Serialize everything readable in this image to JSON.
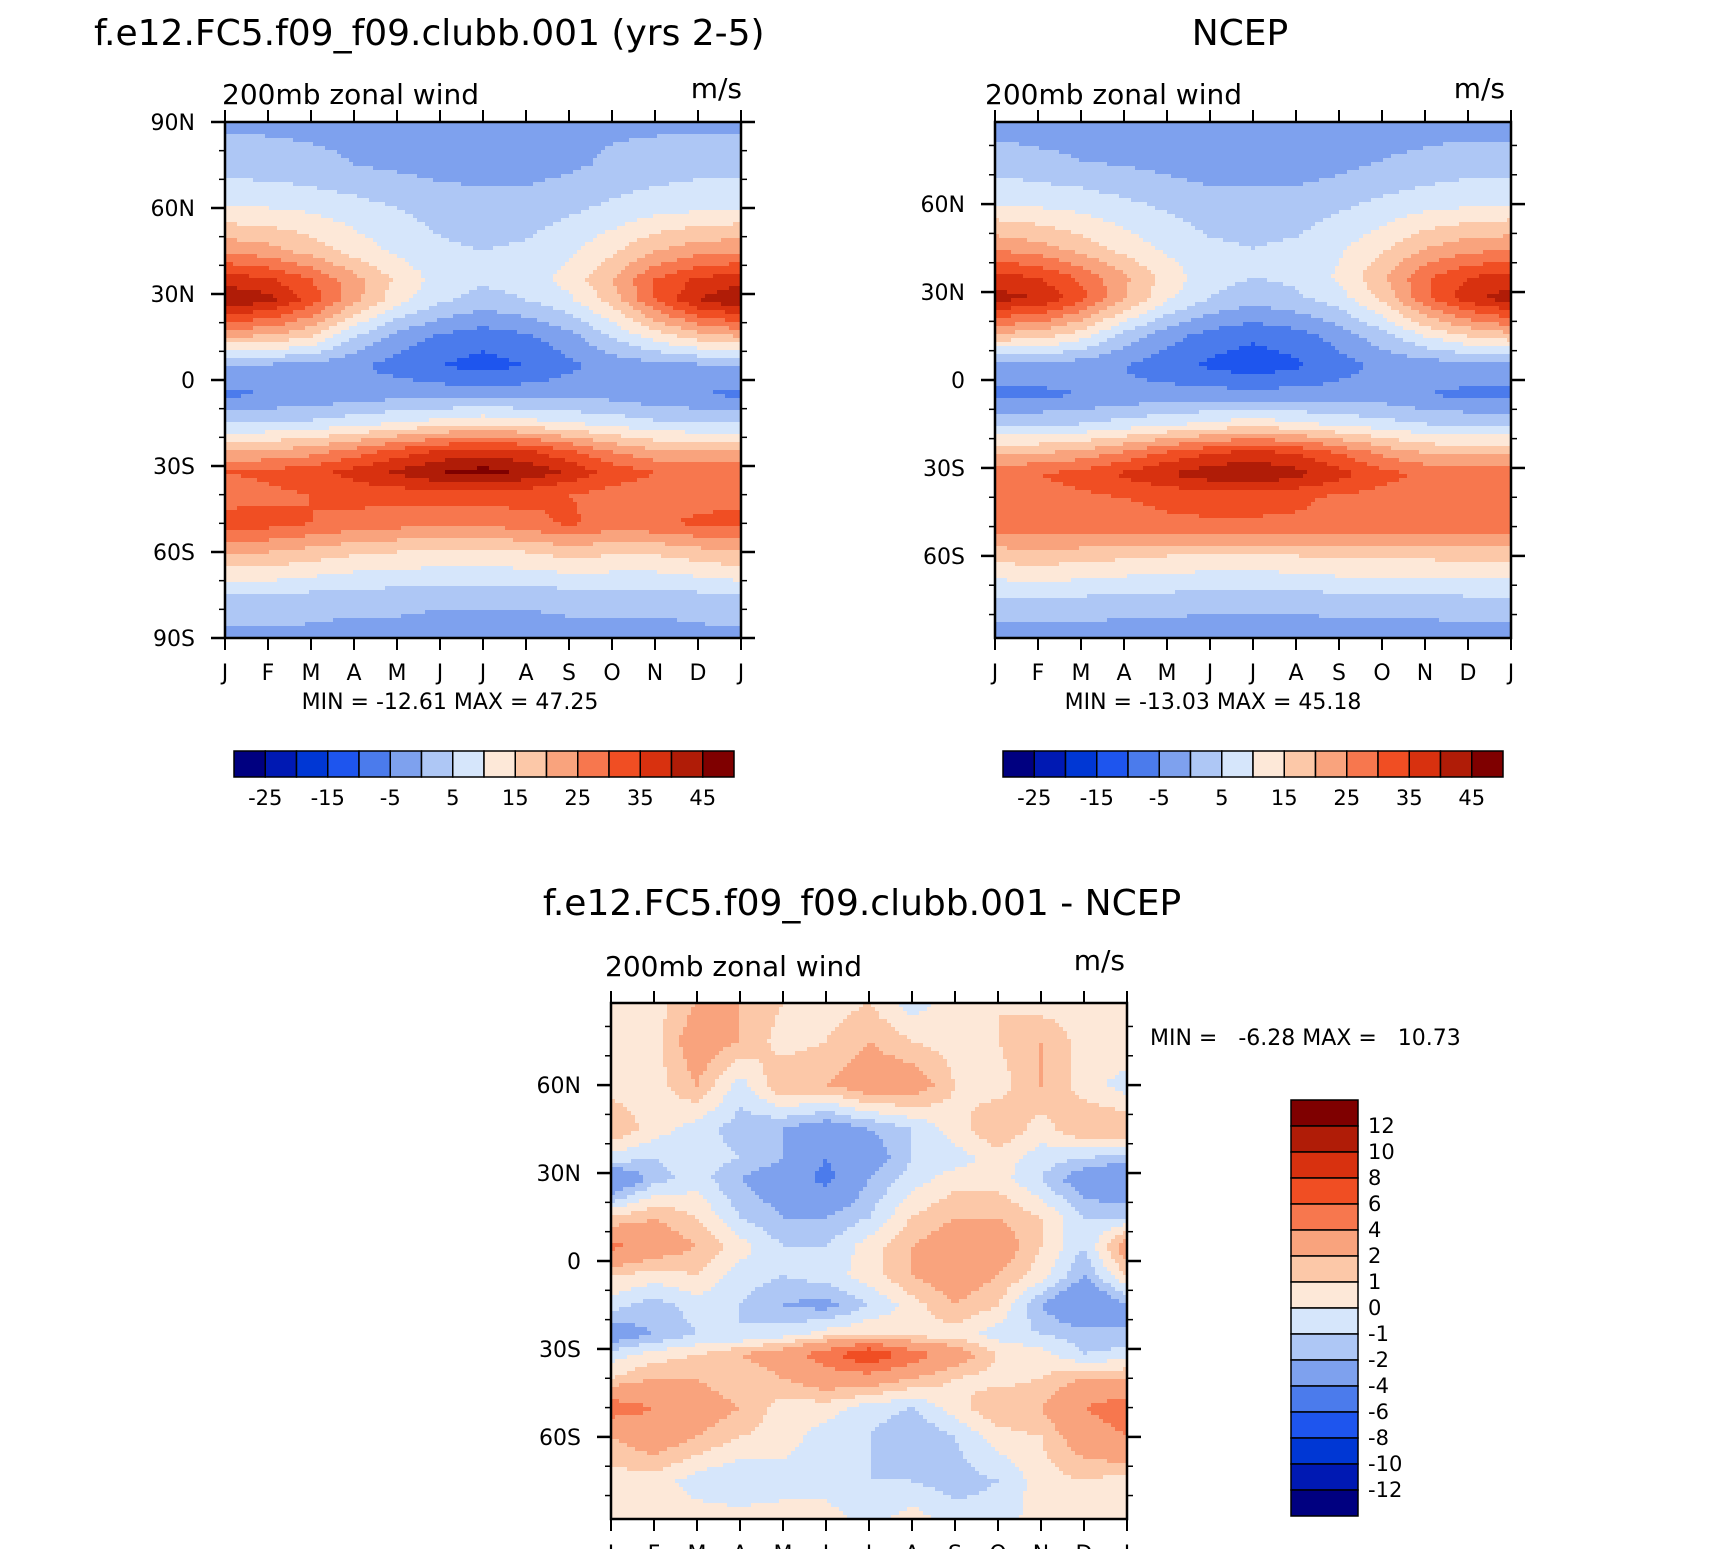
{
  "colors": {
    "fill_levels": [
      "#000080",
      "#0019b3",
      "#0037d4",
      "#1e55ee",
      "#4b7bec",
      "#7ea1ee",
      "#aec7f5",
      "#d6e6fb",
      "#fde8d8",
      "#fcc8a8",
      "#f9a37d",
      "#f7774e",
      "#f04e23",
      "#d8310f",
      "#b01c07",
      "#7f0000"
    ]
  },
  "chart_data": [
    {
      "id": "model",
      "type": "heatmap",
      "title": "f.e12.FC5.f09_f09.clubb.001 (yrs 2-5)",
      "variable_label": "200mb zonal wind",
      "units": "m/s",
      "x_tick_labels": [
        "J",
        "F",
        "M",
        "A",
        "M",
        "J",
        "J",
        "A",
        "S",
        "O",
        "N",
        "D",
        "J"
      ],
      "y_range": [
        -90,
        90
      ],
      "y_tick_labels": [
        "90N",
        "60N",
        "30N",
        "0",
        "30S",
        "60S",
        "90S"
      ],
      "stats": "MIN = -12.61 MAX = 47.25",
      "min": -12.61,
      "max": 47.25,
      "colorbar_labels": [
        "-25",
        "-15",
        "-5",
        "5",
        "15",
        "25",
        "35",
        "45"
      ],
      "contour_levels": [
        -30,
        -25,
        -20,
        -15,
        -10,
        -5,
        0,
        5,
        10,
        15,
        20,
        25,
        30,
        35,
        40,
        45,
        50
      ],
      "field": {
        "months": [
          "J",
          "F",
          "M",
          "A",
          "M",
          "J",
          "J",
          "A",
          "S",
          "O",
          "N",
          "D",
          "J"
        ],
        "latitudes": [
          90,
          75,
          60,
          45,
          35,
          28,
          15,
          5,
          -5,
          -15,
          -25,
          -32,
          -40,
          -50,
          -60,
          -75,
          -90
        ],
        "values": [
          [
            -1,
            -1,
            -1,
            -1,
            -1,
            -1,
            -1,
            -1,
            -1,
            -1,
            -1,
            -1,
            -1
          ],
          [
            3,
            2,
            1,
            0,
            -1,
            -2,
            -2,
            -2,
            -1,
            1,
            2,
            3,
            3
          ],
          [
            10,
            10,
            9,
            7,
            5,
            3,
            2,
            2,
            4,
            6,
            8,
            9,
            10
          ],
          [
            24,
            22,
            18,
            13,
            9,
            6,
            5,
            6,
            9,
            14,
            20,
            23,
            24
          ],
          [
            38,
            36,
            30,
            22,
            14,
            8,
            6,
            7,
            12,
            20,
            30,
            36,
            38
          ],
          [
            44,
            42,
            33,
            22,
            12,
            6,
            3,
            5,
            9,
            17,
            30,
            40,
            45
          ],
          [
            20,
            19,
            15,
            5,
            -2,
            -6,
            -8,
            -6,
            -2,
            5,
            12,
            17,
            20
          ],
          [
            -1,
            -1,
            -2,
            -4,
            -7,
            -10,
            -12,
            -10,
            -6,
            -3,
            -2,
            -1,
            -1
          ],
          [
            -6,
            -5,
            -4,
            -3,
            -2,
            -2,
            -2,
            -2,
            -2,
            -2,
            -4,
            -5,
            -6
          ],
          [
            5,
            5,
            6,
            8,
            10,
            12,
            14,
            12,
            10,
            8,
            6,
            5,
            5
          ],
          [
            20,
            21,
            23,
            27,
            32,
            36,
            38,
            36,
            31,
            25,
            21,
            20,
            20
          ],
          [
            30,
            31,
            33,
            37,
            41,
            45,
            47,
            44,
            39,
            33,
            30,
            29,
            30
          ],
          [
            28,
            29,
            30,
            32,
            32,
            33,
            33,
            32,
            30,
            28,
            28,
            28,
            28
          ],
          [
            32,
            32,
            30,
            28,
            27,
            26,
            26,
            28,
            31,
            28,
            29,
            31,
            32
          ],
          [
            20,
            20,
            18,
            16,
            15,
            14,
            14,
            15,
            17,
            16,
            16,
            18,
            20
          ],
          [
            5,
            5,
            4,
            3,
            3,
            2,
            2,
            2,
            3,
            3,
            3,
            4,
            5
          ],
          [
            -2,
            -2,
            -2,
            -3,
            -3,
            -4,
            -4,
            -4,
            -3,
            -3,
            -3,
            -2,
            -2
          ]
        ]
      }
    },
    {
      "id": "obs",
      "type": "heatmap",
      "title": "NCEP",
      "variable_label": "200mb zonal wind",
      "units": "m/s",
      "x_tick_labels": [
        "J",
        "F",
        "M",
        "A",
        "M",
        "J",
        "J",
        "A",
        "S",
        "O",
        "N",
        "D",
        "J"
      ],
      "y_range": [
        -88,
        88
      ],
      "y_tick_labels": [
        "60N",
        "30N",
        "0",
        "30S",
        "60S"
      ],
      "stats": "MIN = -13.03 MAX = 45.18",
      "min": -13.03,
      "max": 45.18,
      "colorbar_labels": [
        "-25",
        "-15",
        "-5",
        "5",
        "15",
        "25",
        "35",
        "45"
      ],
      "contour_levels": [
        -30,
        -25,
        -20,
        -15,
        -10,
        -5,
        0,
        5,
        10,
        15,
        20,
        25,
        30,
        35,
        40,
        45,
        50
      ],
      "field": {
        "months": [
          "J",
          "F",
          "M",
          "A",
          "M",
          "J",
          "J",
          "A",
          "S",
          "O",
          "N",
          "D",
          "J"
        ],
        "latitudes": [
          88,
          75,
          60,
          45,
          35,
          28,
          15,
          5,
          -5,
          -15,
          -25,
          -32,
          -40,
          -50,
          -60,
          -75,
          -88
        ],
        "values": [
          [
            -2,
            -2,
            -2,
            -2,
            -2,
            -2,
            -2,
            -2,
            -2,
            -2,
            -2,
            -2,
            -2
          ],
          [
            2,
            1,
            0,
            -1,
            -2,
            -3,
            -3,
            -3,
            -2,
            0,
            1,
            2,
            2
          ],
          [
            10,
            9,
            8,
            6,
            4,
            2,
            2,
            2,
            4,
            6,
            8,
            9,
            10
          ],
          [
            24,
            22,
            18,
            13,
            9,
            6,
            5,
            6,
            9,
            14,
            20,
            23,
            24
          ],
          [
            37,
            35,
            29,
            21,
            13,
            7,
            5,
            6,
            11,
            19,
            29,
            35,
            37
          ],
          [
            42,
            40,
            32,
            21,
            11,
            5,
            2,
            4,
            8,
            16,
            29,
            38,
            43
          ],
          [
            18,
            17,
            12,
            3,
            -3,
            -7,
            -9,
            -7,
            -3,
            3,
            10,
            15,
            18
          ],
          [
            -2,
            -2,
            -3,
            -5,
            -8,
            -11,
            -13,
            -11,
            -7,
            -4,
            -3,
            -2,
            -2
          ],
          [
            -6,
            -6,
            -5,
            -4,
            -3,
            -3,
            -3,
            -3,
            -3,
            -3,
            -5,
            -6,
            -6
          ],
          [
            4,
            4,
            5,
            7,
            9,
            11,
            13,
            11,
            9,
            7,
            5,
            4,
            4
          ],
          [
            19,
            20,
            22,
            26,
            31,
            35,
            37,
            35,
            30,
            24,
            20,
            19,
            19
          ],
          [
            29,
            30,
            32,
            36,
            40,
            43,
            45,
            42,
            37,
            32,
            29,
            28,
            29
          ],
          [
            28,
            28,
            29,
            30,
            31,
            32,
            32,
            31,
            29,
            28,
            28,
            28,
            28
          ],
          [
            27,
            28,
            28,
            28,
            29,
            29,
            29,
            29,
            29,
            28,
            28,
            28,
            27
          ],
          [
            17,
            18,
            17,
            16,
            15,
            14,
            14,
            15,
            16,
            16,
            16,
            17,
            17
          ],
          [
            4,
            4,
            4,
            3,
            3,
            2,
            2,
            2,
            3,
            3,
            3,
            4,
            4
          ],
          [
            -3,
            -3,
            -3,
            -3,
            -3,
            -4,
            -4,
            -4,
            -3,
            -3,
            -3,
            -3,
            -3
          ]
        ]
      }
    },
    {
      "id": "diff",
      "type": "heatmap",
      "title": "f.e12.FC5.f09_f09.clubb.001 - NCEP",
      "variable_label": "200mb zonal wind",
      "units": "m/s",
      "x_tick_labels": [
        "J",
        "F",
        "M",
        "A",
        "M",
        "J",
        "J",
        "A",
        "S",
        "O",
        "N",
        "D",
        "J"
      ],
      "y_range": [
        -88,
        88
      ],
      "y_tick_labels": [
        "60N",
        "30N",
        "0",
        "30S",
        "60S"
      ],
      "stats": "MIN =   -6.28 MAX =   10.73",
      "min": -6.28,
      "max": 10.73,
      "colorbar_labels": [
        "12",
        "10",
        "8",
        "6",
        "4",
        "2",
        "1",
        "0",
        "-1",
        "-2",
        "-4",
        "-6",
        "-8",
        "-10",
        "-12"
      ],
      "contour_levels": [
        -14,
        -12,
        -10,
        -8,
        -6,
        -4,
        -2,
        -1,
        0,
        1,
        2,
        4,
        6,
        8,
        10,
        12,
        14
      ],
      "field": {
        "months": [
          "J",
          "F",
          "M",
          "A",
          "M",
          "J",
          "J",
          "A",
          "S",
          "O",
          "N",
          "D",
          "J"
        ],
        "latitudes": [
          88,
          75,
          60,
          45,
          35,
          28,
          15,
          5,
          -5,
          -15,
          -25,
          -32,
          -40,
          -50,
          -60,
          -75,
          -88
        ],
        "values": [
          [
            0.5,
            0.5,
            2,
            2,
            1,
            0.5,
            1,
            -0.5,
            0.5,
            1,
            0.5,
            0.5,
            1
          ],
          [
            1,
            0.5,
            3,
            2,
            0.5,
            1,
            2,
            1,
            0.5,
            1,
            2,
            0.5,
            1
          ],
          [
            0.5,
            0.5,
            2,
            -0.5,
            2,
            2,
            3,
            3,
            1,
            0.5,
            2,
            0.5,
            -0.5
          ],
          [
            2,
            0.5,
            -0.5,
            -1.5,
            -2,
            -3,
            -2,
            -1,
            0.5,
            2,
            0.5,
            2,
            2
          ],
          [
            -0.5,
            -1,
            -0.5,
            -1,
            -2,
            -4,
            -3,
            -1,
            -0.5,
            0.5,
            -0.5,
            -1,
            -1.5
          ],
          [
            -4,
            -1.5,
            -0.5,
            -2,
            -3,
            -4.5,
            -2,
            -0.5,
            0.5,
            0.5,
            -1,
            -3,
            -4
          ],
          [
            1,
            2,
            1,
            -1,
            -2,
            -2,
            -1,
            1,
            2,
            2,
            1,
            -1,
            -1
          ],
          [
            4.5,
            3,
            2,
            0.5,
            -1,
            -1,
            0.5,
            2,
            3,
            3,
            1,
            -1,
            3
          ],
          [
            1,
            0.5,
            1,
            -0.5,
            -1,
            -0.5,
            0.5,
            2,
            3,
            2,
            0.5,
            -2,
            1
          ],
          [
            -0.5,
            -1.5,
            -0.5,
            -1,
            -2,
            -2.5,
            -1,
            0.5,
            2,
            1,
            -2,
            -4,
            -2
          ],
          [
            -3,
            -2,
            -1,
            -1,
            -0.5,
            0.5,
            1,
            0.5,
            0.5,
            -0.5,
            -1,
            -1.5,
            -2
          ],
          [
            -0.5,
            0.5,
            1,
            2,
            3,
            5,
            8,
            5,
            3,
            1,
            0.5,
            -1,
            -0.5
          ],
          [
            1,
            2,
            2,
            1,
            2,
            3,
            3,
            2,
            1,
            0.5,
            1,
            2,
            2
          ],
          [
            5,
            4,
            3,
            2,
            0.5,
            0.5,
            -0.5,
            -1,
            0.5,
            2,
            2,
            4,
            5
          ],
          [
            2,
            3,
            2,
            1,
            0.5,
            -0.5,
            -1,
            -2,
            -1,
            0.5,
            1,
            3,
            4
          ],
          [
            0.5,
            0.5,
            -0.5,
            -1,
            -0.5,
            -0.5,
            -1,
            -1,
            -1.5,
            -1,
            0.5,
            1,
            0.5
          ],
          [
            0.5,
            0.5,
            0.5,
            0.5,
            0.5,
            0.5,
            -0.5,
            0.5,
            -0.5,
            -0.5,
            0.5,
            0.5,
            0.5
          ]
        ]
      }
    }
  ]
}
